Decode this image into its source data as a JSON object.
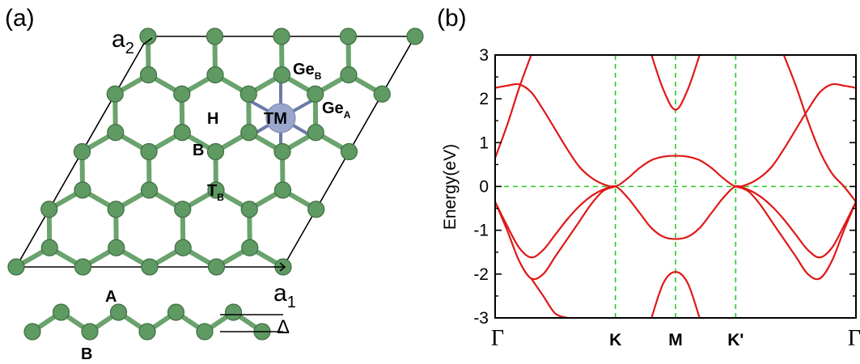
{
  "panel_a": {
    "label": "(a)",
    "vector_a2": {
      "main": "a",
      "sub": "2"
    },
    "vector_a1": {
      "main": "a",
      "sub": "1"
    },
    "sites": {
      "ge_b": {
        "main": "Ge",
        "sub": "B"
      },
      "ge_a": {
        "main": "Ge",
        "sub": "A"
      },
      "tm": "TM",
      "h": "H",
      "b": "B",
      "t_b": {
        "main": "T",
        "sub": "B"
      },
      "a": "A"
    },
    "side_view": {
      "b_label": "B",
      "delta": "Δ"
    },
    "colors": {
      "atom": "#5e9a62",
      "atom_dark": "#3f6e43",
      "bond": "#6aa36d",
      "tm": "#9aa6cc",
      "cell": "#000000"
    }
  },
  "panel_b": {
    "label": "(b)",
    "colors": {
      "band": "#e01818",
      "grid": "#22cc22",
      "frame": "#000000"
    }
  },
  "chart_data": {
    "type": "line",
    "title": "",
    "xlabel": "",
    "ylabel": "Energy(eV)",
    "ylim": [
      -3,
      3
    ],
    "yticks": [
      -3,
      -2,
      -1,
      0,
      1,
      2,
      3
    ],
    "ytick_labels": [
      "-3",
      "-2",
      "-1",
      "0",
      "1",
      "2",
      "3"
    ],
    "x_path_points": [
      0,
      1,
      1.5,
      2,
      3
    ],
    "x_tick_labels": [
      "Γ",
      "K",
      "M",
      "K'",
      "Γ"
    ],
    "grid": "dashed at K, M, K' and E = 0",
    "series": [
      {
        "x": [
          0,
          0.1,
          0.2,
          0.3,
          0.4,
          0.5,
          0.6,
          0.7,
          0.8,
          0.9,
          1.0,
          1.1,
          1.2,
          1.3,
          1.4,
          1.5,
          1.6,
          1.7,
          1.8,
          1.9,
          2.0,
          2.1,
          2.2,
          2.3,
          2.4,
          2.5,
          2.6,
          2.7,
          2.8,
          2.9,
          3.0
        ],
        "y": [
          2.25,
          2.3,
          2.33,
          2.15,
          1.75,
          1.3,
          0.85,
          0.45,
          0.2,
          0.05,
          0.0,
          0.18,
          0.42,
          0.6,
          0.68,
          0.7,
          0.68,
          0.6,
          0.42,
          0.18,
          0.0,
          0.05,
          0.2,
          0.45,
          0.85,
          1.3,
          1.75,
          2.15,
          2.33,
          2.3,
          2.25
        ]
      },
      {
        "x": [
          0,
          0.1,
          0.2,
          0.3,
          0.4,
          0.5,
          0.6,
          0.7,
          0.8,
          0.9,
          1.0,
          1.1,
          1.2,
          1.3,
          1.4,
          1.5,
          1.6,
          1.7,
          1.8,
          1.9,
          2.0,
          2.1,
          2.2,
          2.3,
          2.4,
          2.5,
          2.6,
          2.7,
          2.8,
          2.9,
          3.0
        ],
        "y": [
          -0.35,
          -0.9,
          -1.4,
          -1.62,
          -1.45,
          -1.1,
          -0.75,
          -0.45,
          -0.22,
          -0.07,
          0.0,
          -0.25,
          -0.6,
          -0.95,
          -1.15,
          -1.2,
          -1.15,
          -0.95,
          -0.6,
          -0.25,
          0.0,
          -0.07,
          -0.22,
          -0.45,
          -0.75,
          -1.1,
          -1.45,
          -1.62,
          -1.4,
          -0.9,
          -0.35
        ]
      },
      {
        "x": [
          0,
          0.1,
          0.2,
          0.3,
          0.4,
          0.5,
          0.6,
          0.7,
          0.8,
          0.9,
          1.0
        ],
        "y": [
          0.65,
          1.4,
          2.25,
          3.0,
          null,
          null,
          null,
          null,
          null,
          null,
          null
        ]
      },
      {
        "x": [
          0,
          0.1,
          0.2,
          0.3,
          0.4,
          0.5,
          0.6,
          0.7,
          0.8,
          0.9,
          1.0
        ],
        "y": [
          -0.35,
          -1.0,
          -1.7,
          -2.1,
          -2.0,
          -1.6,
          -1.2,
          -0.8,
          -0.4,
          -0.1,
          0.0
        ]
      },
      {
        "x": [
          0.3,
          0.4,
          0.5,
          0.6,
          0.7,
          0.8,
          0.9,
          1.0
        ],
        "y": [
          -2.1,
          -2.5,
          -2.9,
          -3.0,
          null,
          null,
          null,
          null
        ]
      },
      {
        "x": [
          2.0,
          2.1,
          2.2,
          2.3,
          2.4,
          2.5,
          2.6,
          2.7,
          2.8,
          2.9,
          3.0
        ],
        "y": [
          null,
          null,
          null,
          null,
          3.0,
          2.3,
          1.5,
          0.8,
          0.3,
          0.0,
          -0.35
        ]
      },
      {
        "x": [
          2.0,
          2.1,
          2.2,
          2.3,
          2.4,
          2.5,
          2.6,
          2.7,
          2.8,
          2.9,
          3.0
        ],
        "y": [
          0.0,
          -0.1,
          -0.4,
          -0.8,
          -1.2,
          -1.6,
          -2.0,
          -2.1,
          -1.7,
          -1.0,
          -0.35
        ]
      },
      {
        "x": [
          1.3,
          1.4,
          1.5,
          1.6,
          1.7
        ],
        "y": [
          3.0,
          2.2,
          1.75,
          2.2,
          3.0
        ]
      },
      {
        "x": [
          1.3,
          1.4,
          1.5,
          1.6,
          1.7
        ],
        "y": [
          -3.0,
          -2.2,
          -1.95,
          -2.2,
          -3.0
        ]
      }
    ]
  }
}
